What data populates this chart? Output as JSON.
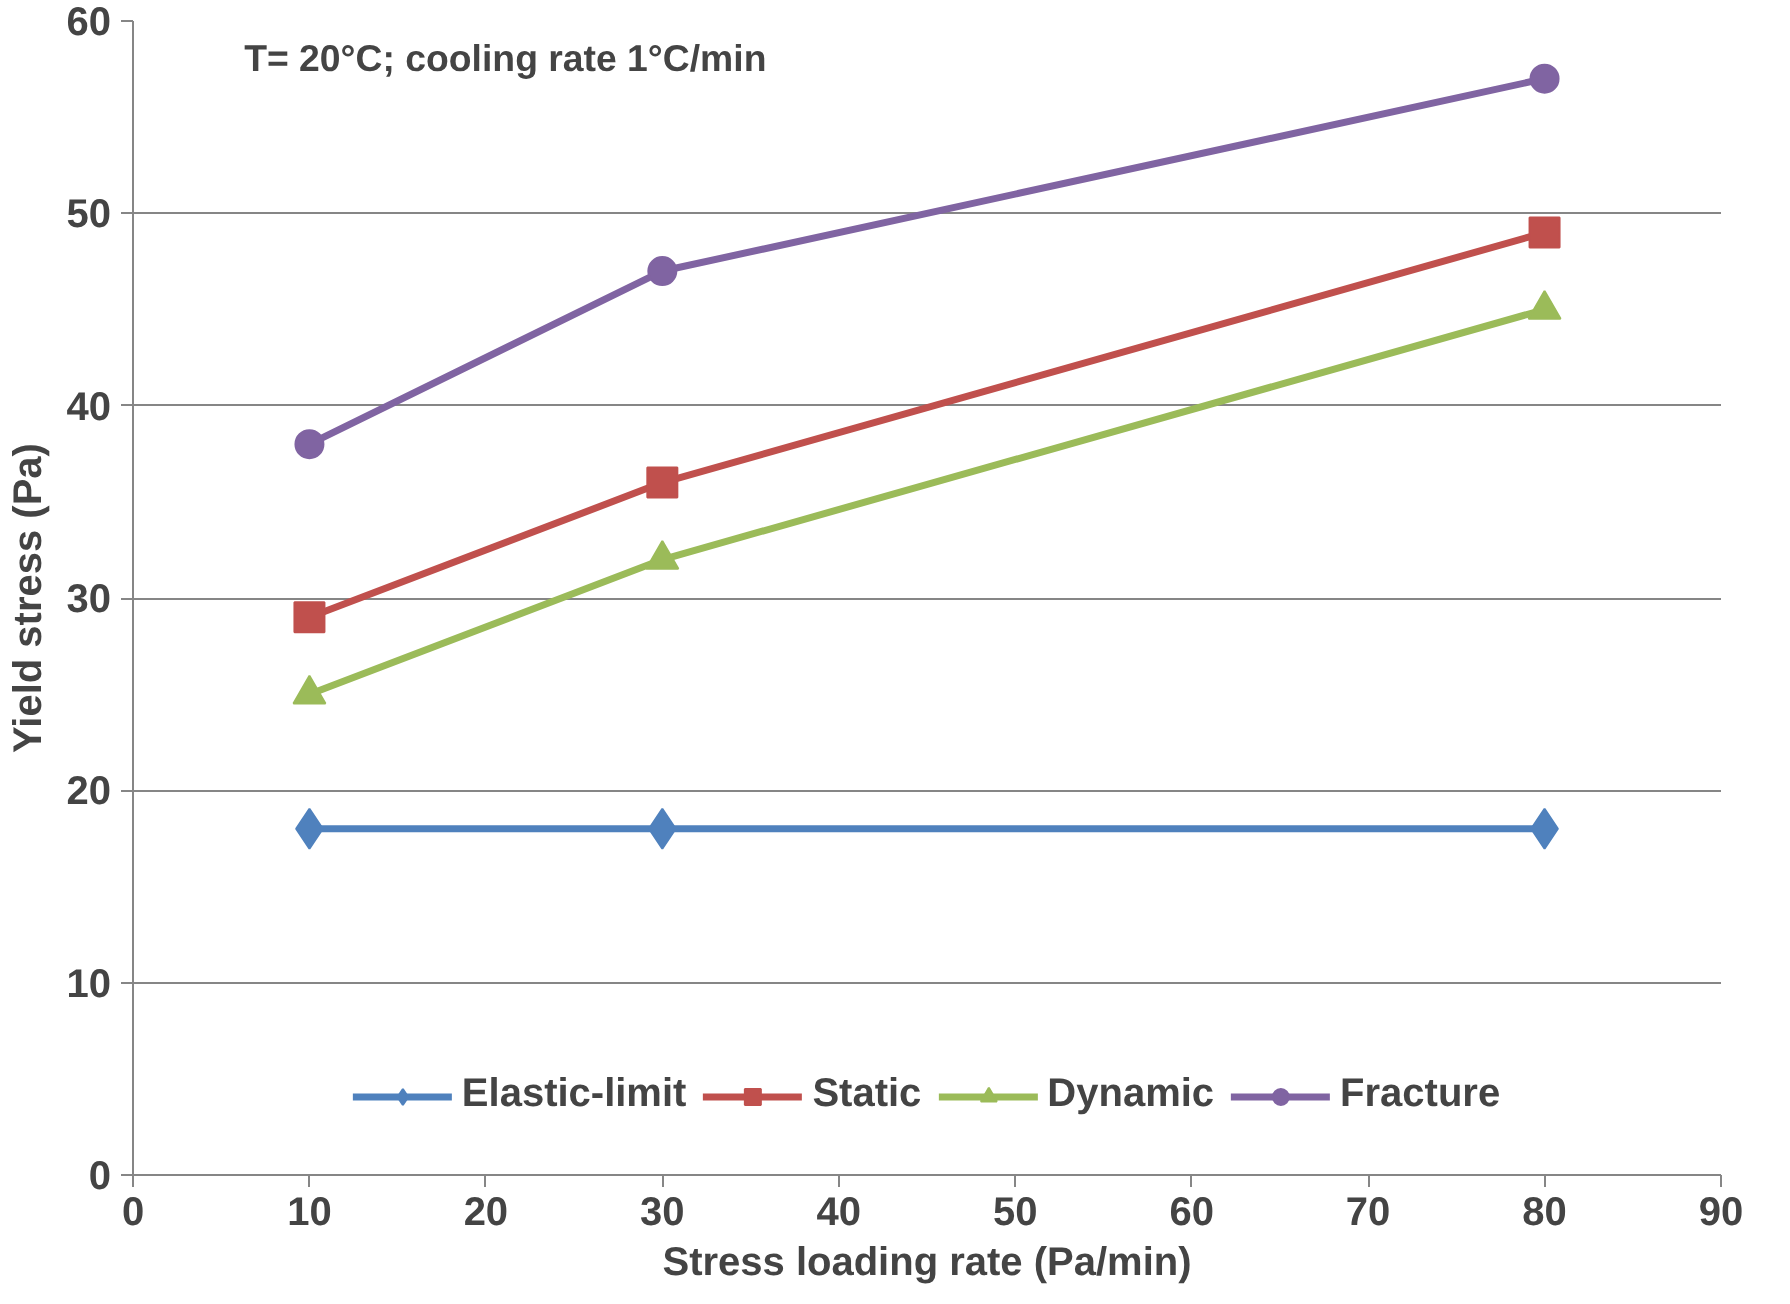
{
  "chart_data": {
    "type": "line",
    "xlabel": "Stress loading rate (Pa/min)",
    "ylabel": "Yield stress (Pa)",
    "x": [
      10,
      30,
      80
    ],
    "xlim": [
      0,
      90
    ],
    "xticks": [
      0,
      10,
      20,
      30,
      40,
      50,
      60,
      70,
      80,
      90
    ],
    "ylim": [
      0,
      60
    ],
    "yticks": [
      0,
      10,
      20,
      30,
      40,
      50,
      60
    ],
    "grid": "y",
    "legend": "bottom",
    "line_style": "solid",
    "annotations": [
      "T= 20°C; cooling rate 1°C/min"
    ],
    "series": [
      {
        "name": "Elastic-limit",
        "color": "#4f81bd",
        "marker": "diamond",
        "values": [
          18,
          18,
          18
        ]
      },
      {
        "name": "Static",
        "color": "#c0504d",
        "marker": "square",
        "values": [
          29,
          36,
          49
        ]
      },
      {
        "name": "Dynamic",
        "color": "#9bbb59",
        "marker": "triangle",
        "values": [
          25,
          32,
          45
        ]
      },
      {
        "name": "Fracture",
        "color": "#8064a2",
        "marker": "circle",
        "values": [
          38,
          47,
          57
        ]
      }
    ]
  }
}
